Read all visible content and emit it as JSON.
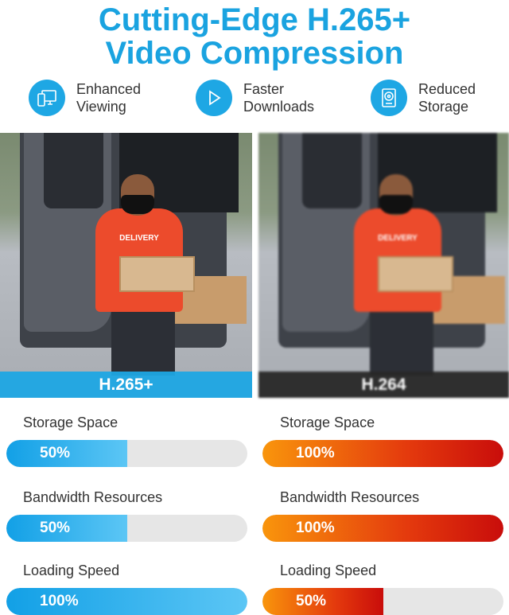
{
  "title": {
    "line1": "Cutting-Edge H.265+",
    "line2": "Video Compression"
  },
  "features": [
    {
      "icon": "devices-icon",
      "line1": "Enhanced",
      "line2": "Viewing"
    },
    {
      "icon": "play-icon",
      "line1": "Faster",
      "line2": "Downloads"
    },
    {
      "icon": "hard-drive-icon",
      "line1": "Reduced",
      "line2": "Storage"
    }
  ],
  "photos": {
    "shirt_text": "DELIVERY",
    "left_label": "H.265+",
    "right_label": "H.264"
  },
  "colors": {
    "accent": "#1aa3e0",
    "h265_tag": "#1ea7e4",
    "h264_tag": "#2b2b2b",
    "orange_start": "#f9950c",
    "red_end": "#c90d0b"
  },
  "left": [
    {
      "label": "Storage Space",
      "value": "50%",
      "percent": 50
    },
    {
      "label": "Bandwidth Resources",
      "value": "50%",
      "percent": 50
    },
    {
      "label": "Loading Speed",
      "value": "100%",
      "percent": 100
    }
  ],
  "right": [
    {
      "label": "Storage Space",
      "value": "100%",
      "percent": 100
    },
    {
      "label": "Bandwidth Resources",
      "value": "100%",
      "percent": 100
    },
    {
      "label": "Loading Speed",
      "value": "50%",
      "percent": 50
    }
  ]
}
